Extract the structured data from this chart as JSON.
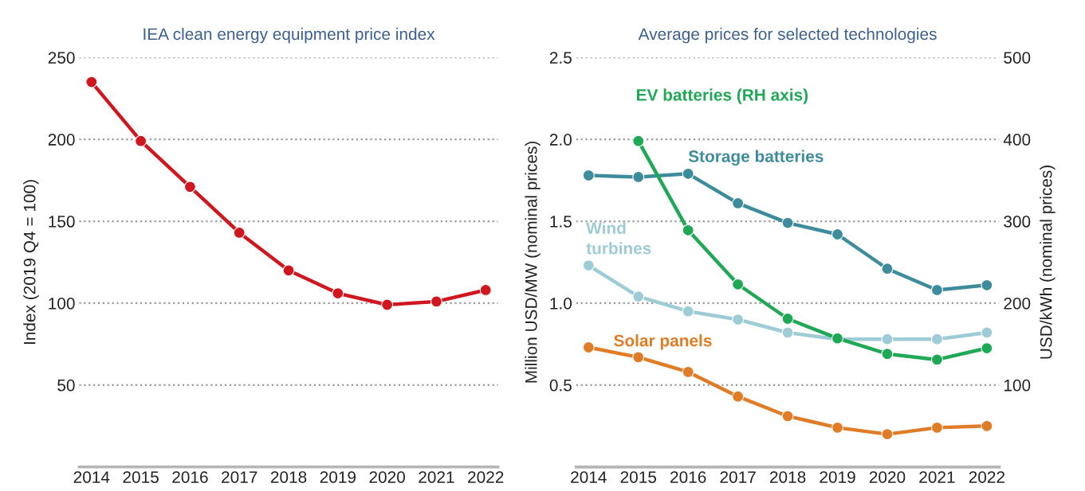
{
  "chart_data": [
    {
      "type": "line",
      "title": "IEA clean energy equipment price index",
      "ylabel": "Index (2019 Q4 = 100)",
      "categories": [
        "2014",
        "2015",
        "2016",
        "2017",
        "2018",
        "2019",
        "2020",
        "2021",
        "2022"
      ],
      "series": [
        {
          "color": "#d0161e",
          "values": [
            235,
            199,
            171,
            143,
            120,
            106,
            99,
            101,
            108
          ]
        }
      ],
      "ylim": [
        0,
        250
      ],
      "yticks": [
        50,
        100,
        150,
        200,
        250
      ],
      "grid": "y",
      "marker": "circle",
      "line_style": "solid",
      "legend": false
    },
    {
      "type": "line",
      "title": "Average prices for selected technologies",
      "ylabel": "Million USD/MW (nominal prices)",
      "y2label": "USD/kWh (nominal prices)",
      "categories": [
        "2014",
        "2015",
        "2016",
        "2017",
        "2018",
        "2019",
        "2020",
        "2021",
        "2022"
      ],
      "series": [
        {
          "name": "EV batteries (RH axis)",
          "color": "#1fa855",
          "axis": "y2",
          "values": [
            null,
            398,
            289,
            223,
            181,
            157,
            138,
            131,
            145
          ]
        },
        {
          "name": "Storage batteries",
          "color": "#3d8c9c",
          "values": [
            1.78,
            1.77,
            1.79,
            1.61,
            1.49,
            1.42,
            1.21,
            1.08,
            1.11
          ]
        },
        {
          "name": "Wind\nturbines",
          "color": "#9dcbd6",
          "values": [
            1.23,
            1.04,
            0.95,
            0.9,
            0.82,
            0.78,
            0.78,
            0.78,
            0.82
          ]
        },
        {
          "name": "Solar panels",
          "color": "#e07b26",
          "values": [
            0.73,
            0.67,
            0.58,
            0.43,
            0.31,
            0.24,
            0.2,
            0.24,
            0.25
          ]
        }
      ],
      "ylim": [
        0,
        2.5
      ],
      "yticks": [
        {
          "value": 0.5,
          "label": "0.5"
        },
        {
          "value": 1.0,
          "label": "1.0"
        },
        {
          "value": 1.5,
          "label": "1.5"
        },
        {
          "value": 2.0,
          "label": "2.0"
        },
        {
          "value": 2.5,
          "label": "2.5"
        }
      ],
      "y2lim": [
        0,
        500
      ],
      "y2ticks": [
        100,
        200,
        300,
        400,
        500
      ],
      "grid": "y",
      "marker": "circle",
      "line_style": "solid",
      "legend": false
    }
  ]
}
